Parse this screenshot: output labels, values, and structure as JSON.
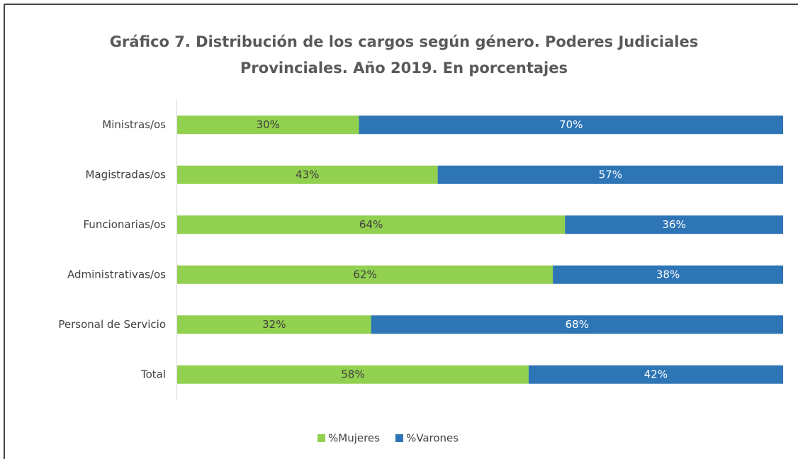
{
  "chart_data": {
    "type": "stacked-barh",
    "title": [
      "Gráfico 7. Distribución de los cargos según género. Poderes Judiciales",
      "Provinciales. Año 2019.  En porcentajes"
    ],
    "categories": [
      "Ministras/os",
      "Magistradas/os",
      "Funcionarias/os",
      "Administrativas/os",
      "Personal de Servicio",
      "Total"
    ],
    "series": [
      {
        "name": "%Mujeres",
        "color": "#92d050",
        "label_color": "#404040",
        "values": [
          30,
          43,
          64,
          62,
          32,
          58
        ],
        "value_labels": [
          "30%",
          "43%",
          "64%",
          "62%",
          "32%",
          "58%"
        ]
      },
      {
        "name": "%Varones",
        "color": "#2e75b6",
        "label_color": "#ffffff",
        "values": [
          70,
          57,
          36,
          38,
          68,
          42
        ],
        "value_labels": [
          "70%",
          "57%",
          "36%",
          "38%",
          "68%",
          "42%"
        ]
      }
    ],
    "xlim": [
      0,
      100
    ],
    "legend": "bottom"
  }
}
